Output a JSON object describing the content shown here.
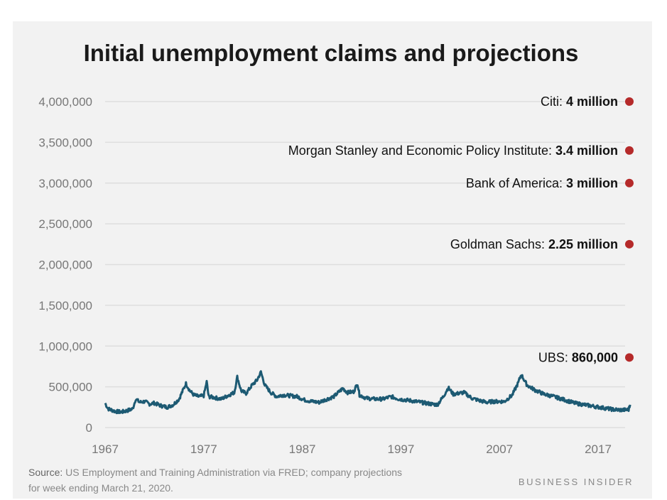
{
  "chart_data": {
    "type": "line",
    "title": "Initial unemployment claims and projections",
    "xlabel": "",
    "ylabel": "",
    "ylim": [
      0,
      4000000
    ],
    "xlim": [
      1967,
      2020.3
    ],
    "y_ticks": [
      0,
      500000,
      1000000,
      1500000,
      2000000,
      2500000,
      3000000,
      3500000,
      4000000
    ],
    "y_tick_labels": [
      "0",
      "500,000",
      "1,000,000",
      "1,500,000",
      "2,000,000",
      "2,500,000",
      "3,000,000",
      "3,500,000",
      "4,000,000"
    ],
    "x_ticks": [
      1967,
      1977,
      1987,
      1997,
      2007,
      2017
    ],
    "x_tick_labels": [
      "1967",
      "1977",
      "1987",
      "1997",
      "2007",
      "2017"
    ],
    "grid": true,
    "line_color": "#1d5a73",
    "marker_color": "#b52a2a",
    "series": [
      {
        "name": "Initial claims",
        "points": [
          [
            1967,
            300000
          ],
          [
            1967.3,
            230000
          ],
          [
            1968,
            200000
          ],
          [
            1968.6,
            190000
          ],
          [
            1969.3,
            210000
          ],
          [
            1969.8,
            230000
          ],
          [
            1970.1,
            350000
          ],
          [
            1970.5,
            310000
          ],
          [
            1971,
            320000
          ],
          [
            1971.5,
            290000
          ],
          [
            1972,
            300000
          ],
          [
            1972.6,
            270000
          ],
          [
            1973.3,
            250000
          ],
          [
            1973.9,
            280000
          ],
          [
            1974.5,
            350000
          ],
          [
            1975.2,
            540000
          ],
          [
            1975.6,
            450000
          ],
          [
            1976,
            400000
          ],
          [
            1976.5,
            380000
          ],
          [
            1977,
            390000
          ],
          [
            1977.3,
            560000
          ],
          [
            1977.5,
            380000
          ],
          [
            1978,
            370000
          ],
          [
            1978.8,
            350000
          ],
          [
            1979.4,
            390000
          ],
          [
            1980.1,
            430000
          ],
          [
            1980.4,
            620000
          ],
          [
            1980.8,
            450000
          ],
          [
            1981.3,
            420000
          ],
          [
            1981.9,
            520000
          ],
          [
            1982.4,
            580000
          ],
          [
            1982.8,
            680000
          ],
          [
            1983.2,
            520000
          ],
          [
            1983.8,
            430000
          ],
          [
            1984.4,
            380000
          ],
          [
            1985,
            400000
          ],
          [
            1985.8,
            390000
          ],
          [
            1986.5,
            380000
          ],
          [
            1987.2,
            340000
          ],
          [
            1988,
            320000
          ],
          [
            1988.7,
            310000
          ],
          [
            1989.3,
            340000
          ],
          [
            1990.2,
            380000
          ],
          [
            1991.1,
            480000
          ],
          [
            1991.6,
            430000
          ],
          [
            1992.2,
            440000
          ],
          [
            1992.6,
            540000
          ],
          [
            1992.8,
            400000
          ],
          [
            1993.5,
            360000
          ],
          [
            1994.3,
            350000
          ],
          [
            1995.2,
            350000
          ],
          [
            1996,
            380000
          ],
          [
            1996.8,
            350000
          ],
          [
            1998,
            330000
          ],
          [
            1999,
            310000
          ],
          [
            2000,
            290000
          ],
          [
            2000.7,
            280000
          ],
          [
            2001.3,
            380000
          ],
          [
            2001.8,
            490000
          ],
          [
            2002.3,
            410000
          ],
          [
            2003.4,
            430000
          ],
          [
            2004.2,
            360000
          ],
          [
            2005,
            330000
          ],
          [
            2005.7,
            310000
          ],
          [
            2006.4,
            320000
          ],
          [
            2007.5,
            320000
          ],
          [
            2008.3,
            400000
          ],
          [
            2008.9,
            550000
          ],
          [
            2009.2,
            650000
          ],
          [
            2009.8,
            520000
          ],
          [
            2010.6,
            460000
          ],
          [
            2011.5,
            410000
          ],
          [
            2012.5,
            380000
          ],
          [
            2013.6,
            340000
          ],
          [
            2014.6,
            300000
          ],
          [
            2015.6,
            280000
          ],
          [
            2016.6,
            260000
          ],
          [
            2017.6,
            240000
          ],
          [
            2018.6,
            220000
          ],
          [
            2019.5,
            215000
          ],
          [
            2020.1,
            220000
          ],
          [
            2020.25,
            280000
          ]
        ]
      }
    ],
    "projections": [
      {
        "name": "Citi",
        "label": "Citi: ",
        "value_label": "4 million",
        "value": 4000000
      },
      {
        "name": "Morgan Stanley and Economic Policy Institute",
        "label": "Morgan Stanley and Economic Policy Institute: ",
        "value_label": "3.4 million",
        "value": 3400000
      },
      {
        "name": "Bank of America",
        "label": "Bank of America: ",
        "value_label": "3 million",
        "value": 3000000
      },
      {
        "name": "Goldman Sachs",
        "label": "Goldman Sachs: ",
        "value_label": "2.25 million",
        "value": 2250000
      },
      {
        "name": "UBS",
        "label": "UBS: ",
        "value_label": "860,000",
        "value": 860000
      }
    ]
  },
  "footer": {
    "source_prefix": "Source:",
    "source_line1": " US Employment and Training Administration via FRED; company projections",
    "source_line2": "for week ending March 21, 2020.",
    "brand": "BUSINESS INSIDER"
  }
}
